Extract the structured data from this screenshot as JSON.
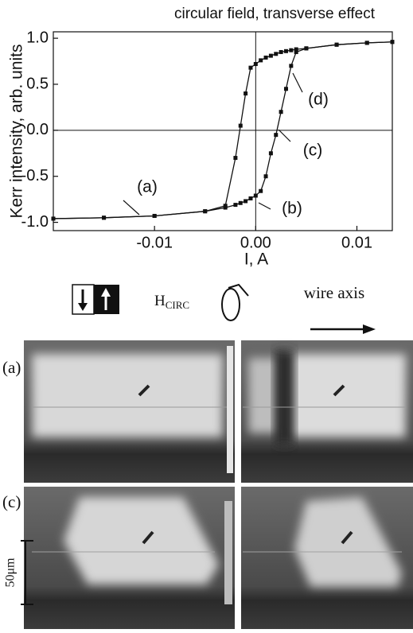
{
  "chart_data": {
    "type": "line",
    "title": "circular field, transverse effect",
    "ylabel": "Kerr intensity, arb. units",
    "xlabel": "I, A",
    "x": [
      -0.02,
      -0.015,
      -0.01,
      -0.005,
      -0.003,
      -0.002,
      -0.0015,
      -0.001,
      -0.0005,
      0,
      0.0005,
      0.001,
      0.0015,
      0.002,
      0.0025,
      0.003,
      0.0035,
      0.004,
      0.005,
      0.008,
      0.011,
      0.0135
    ],
    "series": [
      {
        "color": "#111111",
        "values": [
          -0.96,
          -0.95,
          -0.93,
          -0.88,
          -0.84,
          -0.81,
          -0.79,
          -0.77,
          -0.74,
          -0.71,
          -0.66,
          -0.5,
          -0.25,
          -0.05,
          0.2,
          0.45,
          0.7,
          0.85,
          0.89,
          0.93,
          0.95,
          0.96
        ]
      },
      {
        "color": "#111111",
        "values": [
          -0.96,
          -0.95,
          -0.93,
          -0.88,
          -0.82,
          -0.3,
          0.05,
          0.4,
          0.68,
          0.72,
          0.76,
          0.79,
          0.81,
          0.83,
          0.85,
          0.86,
          0.87,
          0.88,
          0.89,
          0.93,
          0.95,
          0.96
        ]
      }
    ],
    "xlim": [
      -0.02,
      0.0135
    ],
    "ylim": [
      -1.09,
      1.07
    ],
    "xticks": [
      -0.01,
      {
        "value": 0,
        "label": "0.00"
      },
      0.01
    ],
    "yticks": [
      {
        "value": 1,
        "label": "1.0"
      },
      0.5,
      {
        "value": 0,
        "label": "0.0"
      },
      -0.5,
      {
        "value": -1,
        "label": "-1.0"
      }
    ],
    "annotations": [
      "(a)",
      "(b)",
      "(c)",
      "(d)"
    ]
  },
  "panel": {
    "field_label": "H",
    "field_subscript": "CIRC",
    "direction_label": "wire axis",
    "image_labels": [
      "(a)",
      "(c)"
    ],
    "scale_bar": "50μm"
  }
}
